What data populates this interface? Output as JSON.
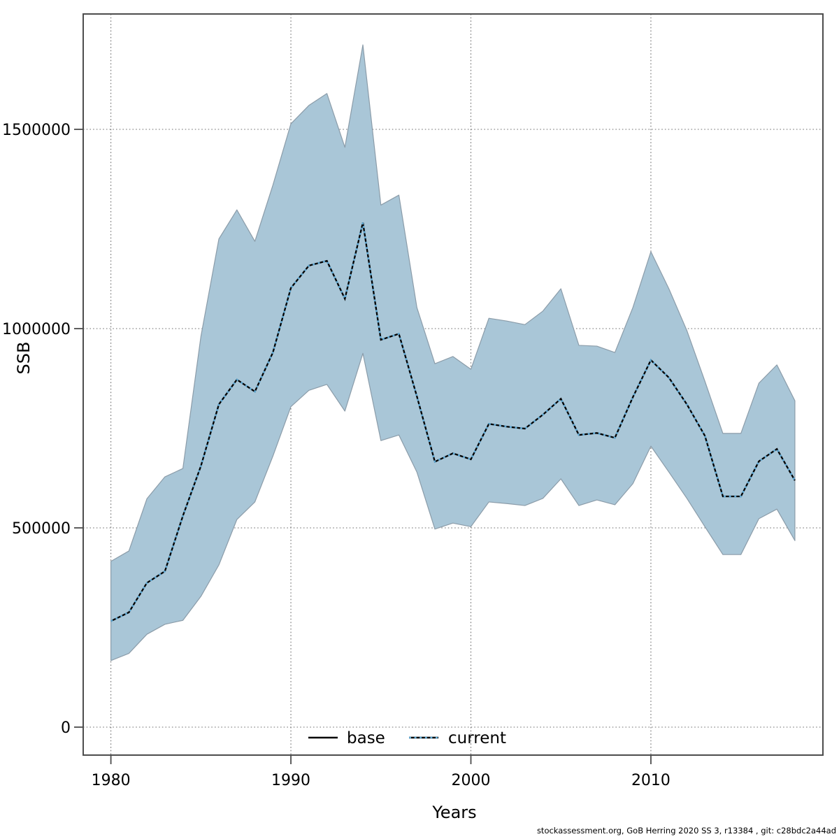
{
  "figure": {
    "y_axis": {
      "label": "SSB",
      "ticks": [
        "1500000",
        "1000000",
        "500000",
        "0"
      ],
      "tick_values": [
        1500000,
        1000000,
        500000,
        0
      ]
    },
    "x_axis": {
      "label": "Years",
      "ticks": [
        "1980",
        "1990",
        "2000",
        "2010"
      ],
      "tick_values": [
        1980,
        1990,
        2000,
        2010
      ]
    },
    "legend": [
      {
        "label": "base",
        "line_style": "solid",
        "color": "#000000"
      },
      {
        "label": "current",
        "line_style": "dotted",
        "color": "#5ea7d2"
      }
    ],
    "footer": "stockassessment.org, GoB Herring 2020 SS 3, r13384 , git: c28bdc2a44ad"
  },
  "colors": {
    "band_fill": "#a9c6d7",
    "band_edge": "#8b9ca9",
    "base_line": "#000000",
    "current_line": "#5ea7d2",
    "grid": "#6e6e6e",
    "axis": "#4d4d4d",
    "background": "#ffffff"
  },
  "chart_data": {
    "type": "line",
    "title": "",
    "xlabel": "Years",
    "ylabel": "SSB",
    "grid": "dotted",
    "legend_position": "bottom-center-inside",
    "xlim": [
      1978.5,
      2019.6
    ],
    "ylim": [
      -70000,
      1790000
    ],
    "x": [
      1980,
      1981,
      1982,
      1983,
      1984,
      1985,
      1986,
      1987,
      1988,
      1989,
      1990,
      1991,
      1992,
      1993,
      1994,
      1995,
      1996,
      1997,
      1998,
      1999,
      2000,
      2001,
      2002,
      2003,
      2004,
      2005,
      2006,
      2007,
      2008,
      2009,
      2010,
      2011,
      2012,
      2013,
      2014,
      2015,
      2016,
      2017,
      2018
    ],
    "series": [
      {
        "name": "base",
        "style": "solid",
        "color": "#000000",
        "values": [
          266000,
          288000,
          362000,
          391000,
          530000,
          655000,
          810000,
          872000,
          842000,
          940000,
          1102000,
          1158000,
          1170000,
          1075000,
          1266000,
          972000,
          987000,
          830000,
          666000,
          687000,
          672000,
          761000,
          754000,
          749000,
          784000,
          824000,
          733000,
          738000,
          726000,
          828000,
          921000,
          877000,
          810000,
          731000,
          579000,
          579000,
          667000,
          698000,
          619000
        ]
      },
      {
        "name": "current",
        "style": "dotted",
        "color": "#5ea7d2",
        "values": [
          266000,
          288000,
          362000,
          391000,
          530000,
          655000,
          810000,
          872000,
          842000,
          940000,
          1102000,
          1158000,
          1170000,
          1075000,
          1266000,
          972000,
          987000,
          830000,
          666000,
          687000,
          672000,
          761000,
          754000,
          749000,
          784000,
          824000,
          733000,
          738000,
          726000,
          828000,
          921000,
          877000,
          810000,
          731000,
          579000,
          579000,
          667000,
          698000,
          619000
        ]
      }
    ],
    "band": {
      "name": "confidence-interval",
      "fill": "#a9c6d7",
      "lower": [
        167000,
        185000,
        233000,
        258000,
        268000,
        328000,
        407000,
        521000,
        565000,
        680000,
        804000,
        845000,
        860000,
        793000,
        938000,
        719000,
        733000,
        640000,
        497000,
        512000,
        503000,
        565000,
        561000,
        556000,
        574000,
        623000,
        556000,
        570000,
        558000,
        611000,
        705000,
        640000,
        574000,
        503000,
        433000,
        433000,
        523000,
        547000,
        468000
      ],
      "upper": [
        416000,
        442000,
        573000,
        628000,
        649000,
        980000,
        1225000,
        1298000,
        1219000,
        1360000,
        1514000,
        1560000,
        1590000,
        1455000,
        1712000,
        1310000,
        1335000,
        1053000,
        912000,
        930000,
        898000,
        1026000,
        1019000,
        1010000,
        1044000,
        1100000,
        958000,
        956000,
        940000,
        1053000,
        1193000,
        1100000,
        995000,
        868000,
        737000,
        737000,
        863000,
        909000,
        819000
      ]
    }
  }
}
